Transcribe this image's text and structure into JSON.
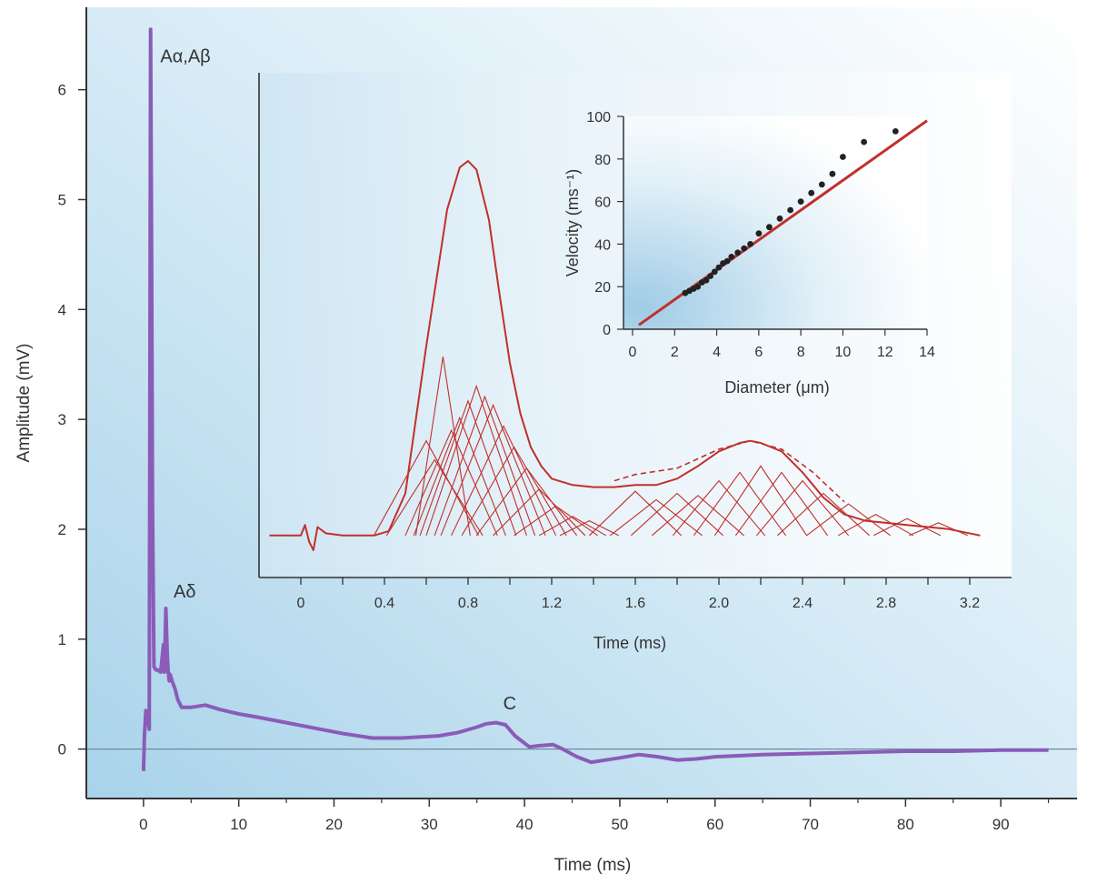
{
  "chart_data": [
    {
      "id": "main",
      "type": "line",
      "xlabel": "Time (ms)",
      "ylabel": "Amplitude (mV)",
      "xlim": [
        -6,
        98
      ],
      "ylim": [
        -0.45,
        6.75
      ],
      "xticks": [
        0,
        10,
        20,
        30,
        40,
        50,
        60,
        70,
        80,
        90
      ],
      "yticks": [
        0,
        1,
        2,
        3,
        4,
        5,
        6
      ],
      "grid": false,
      "baseline": 0,
      "colors": {
        "trace": "#8a5cb8",
        "baseline": "#6e8b9b",
        "axis": "#333333"
      },
      "series": [
        {
          "x": [
            0,
            0.1,
            0.25,
            0.45,
            0.6,
            0.75,
            0.85,
            0.95,
            1.1,
            1.3,
            1.5,
            1.8,
            2.1,
            2.2,
            2.35,
            2.5,
            2.6,
            2.7,
            2.8,
            3.0,
            3.3,
            3.6,
            4,
            5,
            6.5,
            8,
            10,
            12,
            15,
            18,
            21,
            24,
            27,
            31,
            33,
            35,
            36,
            37,
            38,
            39,
            40.5,
            41.5,
            43,
            44,
            45.5,
            47,
            48.5,
            50,
            52,
            54,
            56,
            58,
            60,
            65,
            70,
            75,
            80,
            85,
            90,
            95
          ],
          "y": [
            -0.2,
            0.12,
            0.35,
            0.3,
            0.18,
            6.55,
            4.5,
            2.2,
            0.75,
            0.72,
            0.72,
            0.7,
            0.95,
            0.7,
            1.28,
            0.85,
            0.7,
            0.62,
            0.68,
            0.62,
            0.55,
            0.45,
            0.38,
            0.38,
            0.4,
            0.36,
            0.32,
            0.29,
            0.24,
            0.19,
            0.14,
            0.1,
            0.1,
            0.12,
            0.15,
            0.2,
            0.23,
            0.24,
            0.22,
            0.12,
            0.02,
            0.03,
            0.04,
            0.0,
            -0.07,
            -0.12,
            -0.1,
            -0.08,
            -0.05,
            -0.07,
            -0.1,
            -0.09,
            -0.07,
            -0.05,
            -0.04,
            -0.03,
            -0.02,
            -0.02,
            -0.01,
            -0.01
          ]
        }
      ],
      "annotations": [
        {
          "text": "Aα,Aβ",
          "x": 1.0,
          "y": 6.25
        },
        {
          "text": "Aδ",
          "x": 2.4,
          "y": 1.38
        },
        {
          "text": "C",
          "x": 37.0,
          "y": 0.36
        }
      ]
    },
    {
      "id": "inset",
      "type": "line",
      "xlabel": "Time (ms)",
      "ylabel": "",
      "xlim": [
        -0.2,
        3.4
      ],
      "ylim": [
        -0.2,
        2.2
      ],
      "xticks": [
        0,
        0.4,
        0.8,
        1.2,
        1.6,
        2.0,
        2.4,
        2.8,
        3.2
      ],
      "xtick_labels": [
        "0",
        "0.4",
        "0.8",
        "1.2",
        "1.6",
        "2.0",
        "2.4",
        "2.8",
        "3.2"
      ],
      "minor_xticks": [
        0.2,
        0.6,
        1.0,
        1.4,
        1.8,
        2.2,
        2.6,
        3.0
      ],
      "y_axis_ticks": false,
      "grid": false,
      "colors": {
        "trace": "#c0302b",
        "axis": "#333333",
        "background": "#f2f8fc"
      },
      "compound": {
        "x": [
          -0.15,
          0.0,
          0.02,
          0.04,
          0.06,
          0.08,
          0.12,
          0.2,
          0.35,
          0.42,
          0.5,
          0.6,
          0.7,
          0.76,
          0.8,
          0.84,
          0.9,
          0.95,
          1.0,
          1.05,
          1.1,
          1.15,
          1.2,
          1.3,
          1.4,
          1.5,
          1.6,
          1.7,
          1.8,
          1.9,
          2.0,
          2.1,
          2.15,
          2.2,
          2.3,
          2.4,
          2.5,
          2.6,
          2.7,
          2.8,
          2.9,
          3.0,
          3.1,
          3.25
        ],
        "y": [
          0,
          0,
          0.05,
          -0.03,
          -0.07,
          0.04,
          0.01,
          0,
          0,
          0.02,
          0.2,
          0.9,
          1.55,
          1.75,
          1.78,
          1.74,
          1.5,
          1.15,
          0.82,
          0.58,
          0.42,
          0.33,
          0.27,
          0.24,
          0.23,
          0.23,
          0.24,
          0.24,
          0.27,
          0.33,
          0.4,
          0.44,
          0.45,
          0.44,
          0.4,
          0.3,
          0.18,
          0.1,
          0.07,
          0.06,
          0.05,
          0.04,
          0.03,
          0
        ]
      },
      "dashed_envelope": {
        "x": [
          1.5,
          1.6,
          1.8,
          2.0,
          2.15,
          2.3,
          2.45,
          2.6
        ],
        "y": [
          0.26,
          0.29,
          0.32,
          0.41,
          0.45,
          0.41,
          0.3,
          0.16
        ]
      },
      "components": [
        {
          "peak_x": 0.6,
          "peak_y": 0.45,
          "half_width": 0.25
        },
        {
          "peak_x": 0.64,
          "peak_y": 0.36,
          "half_width": 0.23
        },
        {
          "peak_x": 0.68,
          "peak_y": 0.85,
          "half_width": 0.13
        },
        {
          "peak_x": 0.72,
          "peak_y": 0.5,
          "half_width": 0.22
        },
        {
          "peak_x": 0.76,
          "peak_y": 0.56,
          "half_width": 0.22
        },
        {
          "peak_x": 0.8,
          "peak_y": 0.64,
          "half_width": 0.23
        },
        {
          "peak_x": 0.84,
          "peak_y": 0.71,
          "half_width": 0.24
        },
        {
          "peak_x": 0.88,
          "peak_y": 0.66,
          "half_width": 0.24
        },
        {
          "peak_x": 0.92,
          "peak_y": 0.62,
          "half_width": 0.25
        },
        {
          "peak_x": 0.97,
          "peak_y": 0.52,
          "half_width": 0.25
        },
        {
          "peak_x": 1.02,
          "peak_y": 0.42,
          "half_width": 0.25
        },
        {
          "peak_x": 1.08,
          "peak_y": 0.32,
          "half_width": 0.24
        },
        {
          "peak_x": 1.14,
          "peak_y": 0.22,
          "half_width": 0.22
        },
        {
          "peak_x": 1.22,
          "peak_y": 0.14,
          "half_width": 0.2
        },
        {
          "peak_x": 1.3,
          "peak_y": 0.09,
          "half_width": 0.16
        },
        {
          "peak_x": 1.38,
          "peak_y": 0.07,
          "half_width": 0.14
        },
        {
          "peak_x": 1.6,
          "peak_y": 0.21,
          "half_width": 0.22
        },
        {
          "peak_x": 1.7,
          "peak_y": 0.17,
          "half_width": 0.22
        },
        {
          "peak_x": 1.8,
          "peak_y": 0.2,
          "half_width": 0.22
        },
        {
          "peak_x": 1.9,
          "peak_y": 0.19,
          "half_width": 0.22
        },
        {
          "peak_x": 2.0,
          "peak_y": 0.26,
          "half_width": 0.22
        },
        {
          "peak_x": 2.1,
          "peak_y": 0.3,
          "half_width": 0.22
        },
        {
          "peak_x": 2.2,
          "peak_y": 0.33,
          "half_width": 0.22
        },
        {
          "peak_x": 2.3,
          "peak_y": 0.3,
          "half_width": 0.22
        },
        {
          "peak_x": 2.4,
          "peak_y": 0.26,
          "half_width": 0.22
        },
        {
          "peak_x": 2.5,
          "peak_y": 0.2,
          "half_width": 0.22
        },
        {
          "peak_x": 2.62,
          "peak_y": 0.15,
          "half_width": 0.2
        },
        {
          "peak_x": 2.75,
          "peak_y": 0.1,
          "half_width": 0.18
        },
        {
          "peak_x": 2.9,
          "peak_y": 0.08,
          "half_width": 0.16
        },
        {
          "peak_x": 3.05,
          "peak_y": 0.06,
          "half_width": 0.14
        }
      ]
    },
    {
      "id": "velocity",
      "type": "scatter",
      "xlabel": "Diameter (μm)",
      "ylabel": "Velocity (ms⁻¹)",
      "xlim": [
        0,
        14
      ],
      "ylim": [
        0,
        100
      ],
      "xticks": [
        0,
        2,
        4,
        6,
        8,
        10,
        12,
        14
      ],
      "yticks": [
        0,
        20,
        40,
        60,
        80,
        100
      ],
      "grid": false,
      "colors": {
        "points": "#222222",
        "fit": "#c0302b",
        "axis": "#333333"
      },
      "points": {
        "x": [
          2.5,
          2.7,
          2.9,
          3.1,
          3.3,
          3.5,
          3.7,
          3.9,
          4.1,
          4.3,
          4.5,
          4.7,
          5.0,
          5.3,
          5.6,
          6.0,
          6.5,
          7.0,
          7.5,
          8.0,
          8.5,
          9.0,
          9.5,
          10.0,
          11.0,
          12.5
        ],
        "y": [
          17,
          18,
          19,
          20,
          22,
          23,
          25,
          27,
          29,
          31,
          32,
          34,
          36,
          38,
          40,
          45,
          48,
          52,
          56,
          60,
          64,
          68,
          73,
          81,
          88,
          93
        ]
      },
      "fit": {
        "x": [
          0.3,
          14
        ],
        "y": [
          2,
          98
        ]
      }
    }
  ]
}
